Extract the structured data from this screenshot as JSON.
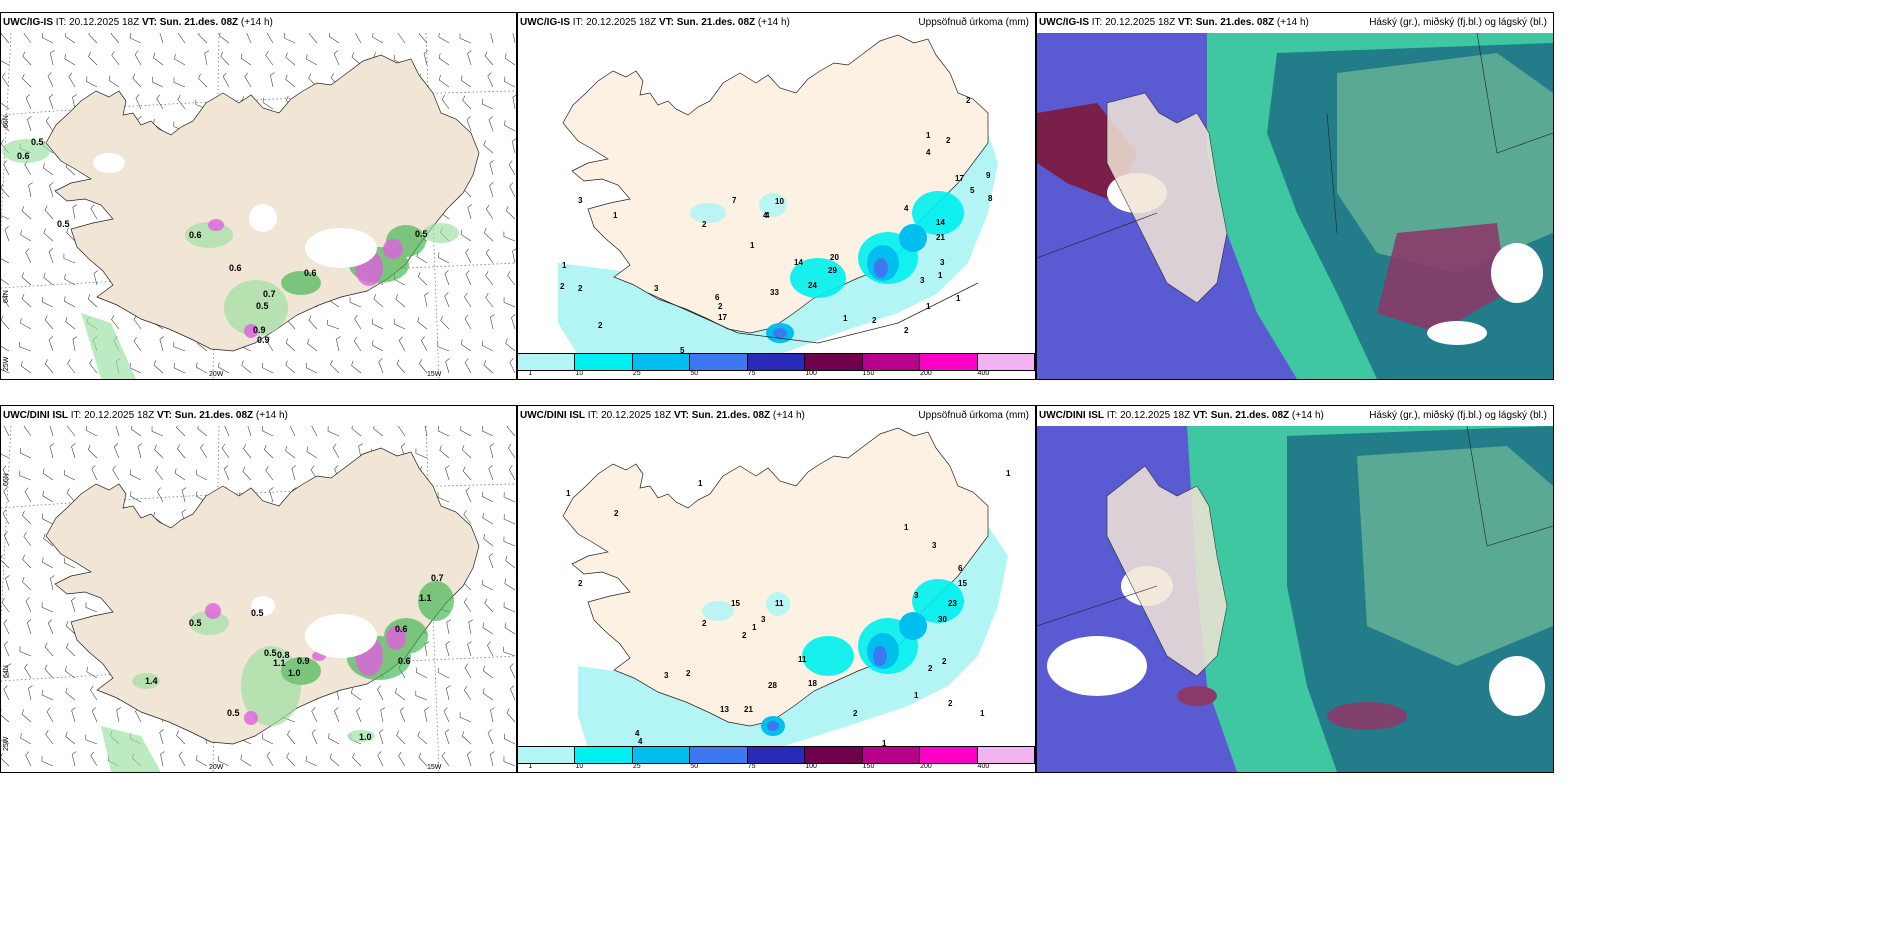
{
  "panels": [
    {
      "id": "tl",
      "model": "UWC/IG-IS",
      "it_label": "IT: 20.12.2025 18Z",
      "vt": "VT: Sun. 21.des. 08Z",
      "lead": "(+14 h)",
      "right": ""
    },
    {
      "id": "tm",
      "model": "UWC/IG-IS",
      "it_label": "IT: 20.12.2025 18Z",
      "vt": "VT: Sun. 21.des. 08Z",
      "lead": "(+14 h)",
      "right": "Uppsöfnuð úrkoma (mm)"
    },
    {
      "id": "tr",
      "model": "UWC/IG-IS",
      "it_label": "IT: 20.12.2025 18Z",
      "vt": "VT: Sun. 21.des. 08Z",
      "lead": "(+14 h)",
      "right": "Háský (gr.), miðský (fj.bl.) og lágský (bl.)"
    },
    {
      "id": "bl",
      "model": "UWC/DINI ISL",
      "it_label": "IT: 20.12.2025 18Z",
      "vt": "VT: Sun. 21.des. 08Z",
      "lead": "(+14 h)",
      "right": ""
    },
    {
      "id": "bm",
      "model": "UWC/DINI ISL",
      "it_label": "IT: 20.12.2025 18Z",
      "vt": "VT: Sun. 21.des. 08Z",
      "lead": "(+14 h)",
      "right": "Uppsöfnuð úrkoma (mm)"
    },
    {
      "id": "br",
      "model": "UWC/DINI ISL",
      "it_label": "IT: 20.12.2025 18Z",
      "vt": "VT: Sun. 21.des. 08Z",
      "lead": "(+14 h)",
      "right": "Háský (gr.), miðský (fj.bl.) og lágský (bl.)"
    }
  ],
  "axes": {
    "lat_66": "66N",
    "lat_64": "64N",
    "lon_25": "25W",
    "lon_20": "20W",
    "lon_15": "15W"
  },
  "legend": {
    "ticks": [
      "1",
      "10",
      "25",
      "50",
      "75",
      "100",
      "150",
      "200",
      "400"
    ],
    "colors": [
      "#b3f5f5",
      "#00f0f0",
      "#00bfef",
      "#3d78f2",
      "#2a2ab8",
      "#70004e",
      "#b8008a",
      "#ff00c8",
      "#f3b3f0"
    ]
  },
  "colors": {
    "land": "#f1e5d6",
    "land_precip": "#fdf1e4",
    "wind": "#444444",
    "low_cloud": "#1f6f86",
    "mid_cloud": "#5a5ad2",
    "high_cloud": "#3ec7a0",
    "precip_green": "#3cb44b",
    "precip_pink": "#e060e0"
  },
  "tl_values": [
    "0.5",
    "0.6",
    "0.5",
    "0.6",
    "0.6",
    "0.7",
    "0.5",
    "0.6",
    "0.5",
    "0.9",
    "0.9"
  ],
  "tm_values": [
    "2",
    "1",
    "2",
    "3",
    "10",
    "7",
    "4",
    "2",
    "1",
    "1",
    "1",
    "2",
    "17",
    "4",
    "33",
    "24",
    "29",
    "20",
    "14",
    "6",
    "3",
    "2",
    "2",
    "5",
    "1",
    "2",
    "4",
    "4",
    "2",
    "3",
    "3",
    "1",
    "1",
    "2",
    "1",
    "5",
    "8",
    "9",
    "14",
    "17",
    "21"
  ],
  "bl_values": [
    "0.5",
    "0.5",
    "1.1",
    "0.8",
    "0.9",
    "1.0",
    "0.7",
    "1.1",
    "1.4",
    "0.5",
    "0.6",
    "1.0",
    "0.5",
    "0.6"
  ],
  "bm_values": [
    "1",
    "1",
    "1",
    "2",
    "2",
    "2",
    "15",
    "11",
    "3",
    "2",
    "1",
    "4",
    "3",
    "2",
    "13",
    "21",
    "28",
    "18",
    "11",
    "30",
    "23",
    "15",
    "6",
    "3",
    "3",
    "2",
    "2",
    "1",
    "6",
    "4",
    "1",
    "2",
    "1",
    "2",
    "1",
    "1"
  ]
}
